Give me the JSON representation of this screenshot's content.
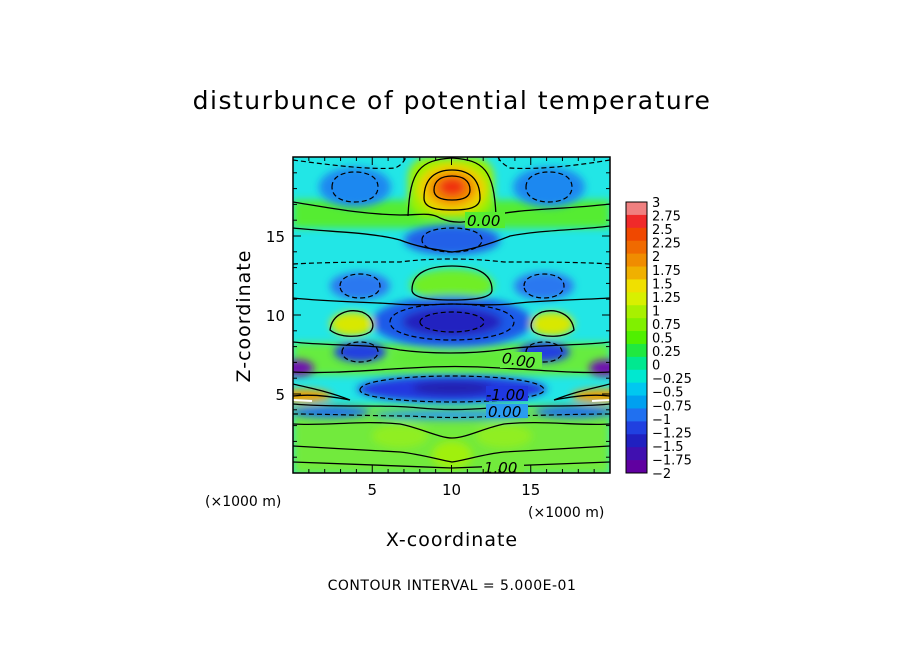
{
  "title": "disturbunce of potential temperature",
  "footer": "CONTOUR INTERVAL = 5.000E-01",
  "chart_data": {
    "type": "heatmap",
    "title": "disturbunce of potential temperature",
    "xlabel": "X-coordinate",
    "ylabel": "Z-coordinate",
    "x_unit_label": "(×1000 m)",
    "z_unit_label": "(×1000 m)",
    "xlim": [
      0,
      20
    ],
    "ylim": [
      0,
      20
    ],
    "x_ticks": [
      5,
      10,
      15
    ],
    "y_ticks": [
      5,
      10,
      15
    ],
    "contour_interval": 0.5,
    "contour_labels": [
      "0.00",
      "0.00",
      "-1.00",
      "0.00",
      "1.00"
    ],
    "colorbar": {
      "min": -2,
      "max": 3,
      "levels": [
        "3",
        "2.75",
        "2.5",
        "2.25",
        "2",
        "1.75",
        "1.5",
        "1.25",
        "1",
        "0.75",
        "0.5",
        "0.25",
        "0",
        "−0.25",
        "−0.5",
        "−0.75",
        "−1",
        "−1.25",
        "−1.5",
        "−1.75",
        "−2"
      ],
      "colors": [
        "#f08080",
        "#f02a2a",
        "#f04800",
        "#f06a00",
        "#f08c00",
        "#f0b000",
        "#f0e000",
        "#d8f000",
        "#a8f000",
        "#80f000",
        "#50f000",
        "#20e840",
        "#00e890",
        "#00e8d0",
        "#00c8f0",
        "#00a0f0",
        "#2070f0",
        "#2040e0",
        "#2020c0",
        "#4010b0",
        "#6000a0"
      ]
    },
    "features": [
      {
        "x": 10,
        "z": 18,
        "value": 2.8
      },
      {
        "x": 10,
        "z": 14.3,
        "value": -1.2
      },
      {
        "x": 10,
        "z": 11.8,
        "value": 0.8
      },
      {
        "x": 10,
        "z": 9.5,
        "value": -1.6
      },
      {
        "x": 10,
        "z": 7.3,
        "value": 0.5
      },
      {
        "x": 10,
        "z": 5.3,
        "value": -1.5
      },
      {
        "x": 10,
        "z": 1.5,
        "value": 0.5
      },
      {
        "x": 3.8,
        "z": 18,
        "value": -1.0
      },
      {
        "x": 16.2,
        "z": 18,
        "value": -1.0
      },
      {
        "x": 4.2,
        "z": 11.7,
        "value": -1.0
      },
      {
        "x": 15.8,
        "z": 11.7,
        "value": -1.0
      },
      {
        "x": 2.8,
        "z": 9.3,
        "value": 1.5
      },
      {
        "x": 17.2,
        "z": 9.3,
        "value": 1.5
      },
      {
        "x": 4.2,
        "z": 7.6,
        "value": -1.3
      },
      {
        "x": 15.8,
        "z": 7.6,
        "value": -1.3
      },
      {
        "x": 0.6,
        "z": 6.6,
        "value": -1.8
      },
      {
        "x": 19.4,
        "z": 6.6,
        "value": -1.8
      },
      {
        "x": 0.7,
        "z": 4.7,
        "value": 2.0
      },
      {
        "x": 19.3,
        "z": 4.7,
        "value": 2.0
      }
    ]
  }
}
